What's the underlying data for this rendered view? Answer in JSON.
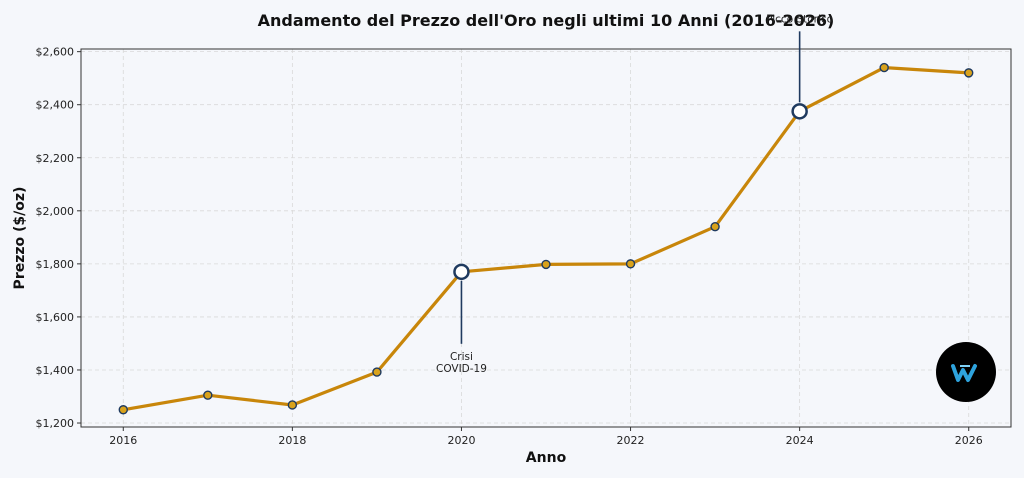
{
  "chart_data": {
    "type": "line",
    "title": "Andamento del Prezzo dell'Oro negli ultimi 10 Anni (2016-2026)",
    "xlabel": "Anno",
    "ylabel": "Prezzo ($/oz)",
    "xlim": [
      2015.5,
      2026.5
    ],
    "ylim": [
      1185,
      2610
    ],
    "x_ticks": [
      2016,
      2018,
      2020,
      2022,
      2024,
      2026
    ],
    "y_ticks": [
      1200,
      1400,
      1600,
      1800,
      2000,
      2200,
      2400,
      2600
    ],
    "y_tick_labels": [
      "$1,200",
      "$1,400",
      "$1,600",
      "$1,800",
      "$2,000",
      "$2,200",
      "$2,400",
      "$2,600"
    ],
    "grid": true,
    "series": [
      {
        "x": [
          2016,
          2017,
          2018,
          2019,
          2020,
          2021,
          2022,
          2023,
          2024,
          2025,
          2026
        ],
        "values": [
          1250,
          1305,
          1268,
          1392,
          1770,
          1798,
          1800,
          1940,
          2375,
          2540,
          2520
        ],
        "color": "#c8860a",
        "marker_color": "#d9a21b",
        "marker_edge": "#1f3a5f"
      }
    ],
    "annotations": [
      {
        "x": 2020,
        "y": 1770,
        "text_lines": [
          "Crisi",
          "COVID-19"
        ],
        "placement": "below"
      },
      {
        "x": 2024,
        "y": 2375,
        "text_lines": [
          "Picco Storico"
        ],
        "placement": "above"
      }
    ]
  },
  "logo": {
    "icon": "w-logo-icon",
    "color": "#2ea3dd",
    "background": "#000000"
  }
}
